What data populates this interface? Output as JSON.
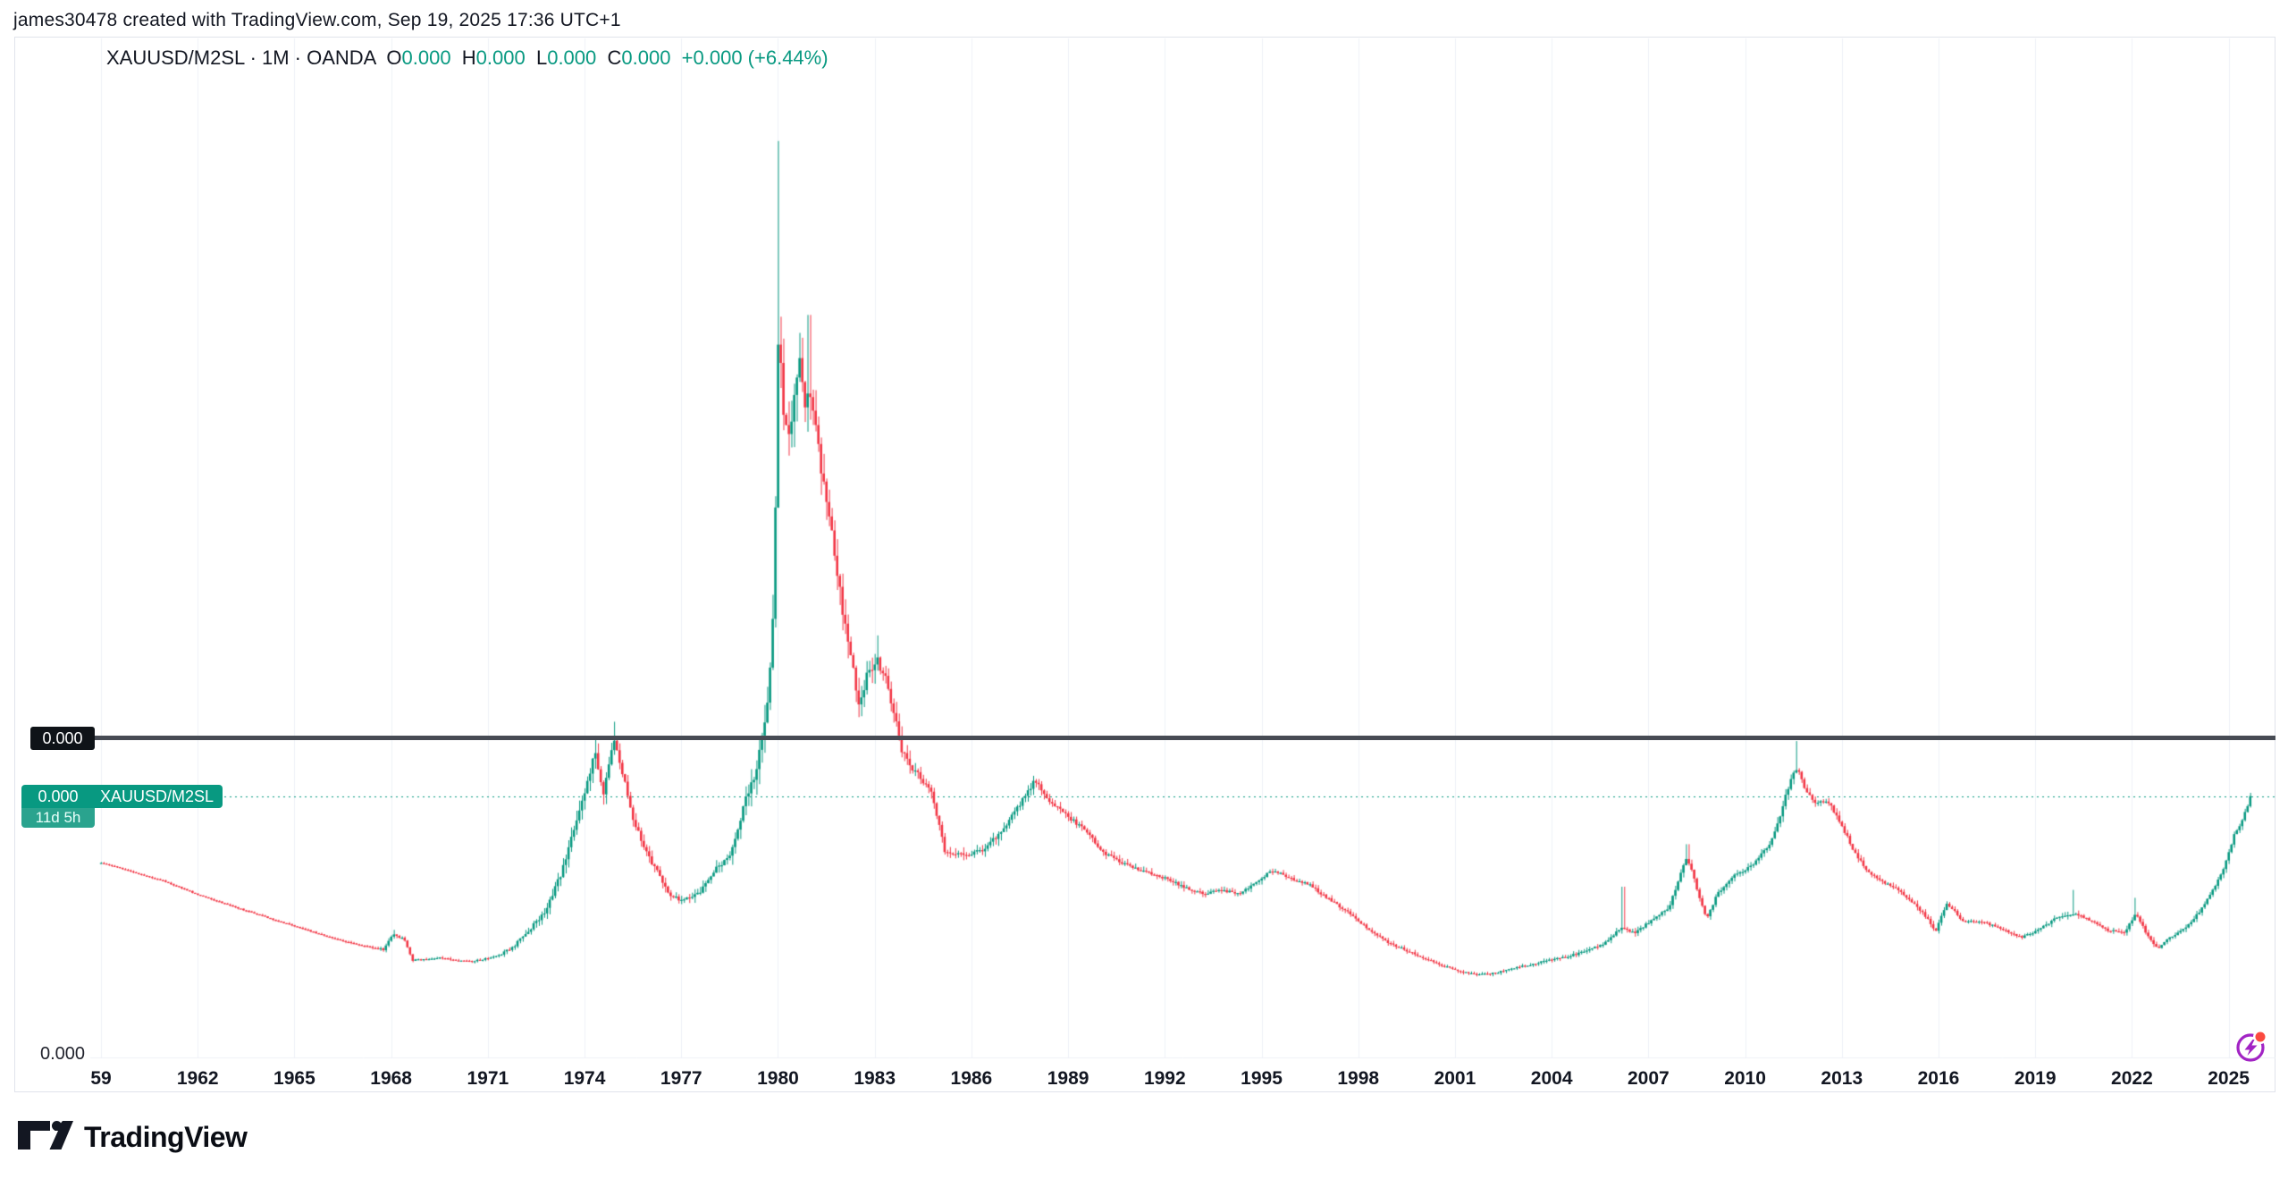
{
  "attribution": {
    "text": "james30478 created with TradingView.com, Sep 19, 2025 17:36 UTC+1"
  },
  "legend": {
    "symbol_line": "XAUUSD/M2SL · 1M · OANDA",
    "ohlc": [
      {
        "label": "O",
        "value": "0.000"
      },
      {
        "label": "H",
        "value": "0.000"
      },
      {
        "label": "L",
        "value": "0.000"
      },
      {
        "label": "C",
        "value": "0.000"
      }
    ],
    "change": "+0.000 (+6.44%)"
  },
  "price_scale": {
    "line_label": "0.000",
    "bottom_tick": "0.000",
    "current_price_label": "0.000",
    "countdown": "11d 5h",
    "series_tag": "XAUUSD/M2SL"
  },
  "time_axis": {
    "labels": [
      {
        "text": "59",
        "year": 1959
      },
      {
        "text": "1962",
        "year": 1962
      },
      {
        "text": "1965",
        "year": 1965
      },
      {
        "text": "1968",
        "year": 1968
      },
      {
        "text": "1971",
        "year": 1971
      },
      {
        "text": "1974",
        "year": 1974
      },
      {
        "text": "1977",
        "year": 1977
      },
      {
        "text": "1980",
        "year": 1980
      },
      {
        "text": "1983",
        "year": 1983
      },
      {
        "text": "1986",
        "year": 1986
      },
      {
        "text": "1989",
        "year": 1989
      },
      {
        "text": "1992",
        "year": 1992
      },
      {
        "text": "1995",
        "year": 1995
      },
      {
        "text": "1998",
        "year": 1998
      },
      {
        "text": "2001",
        "year": 2001
      },
      {
        "text": "2004",
        "year": 2004
      },
      {
        "text": "2007",
        "year": 2007
      },
      {
        "text": "2010",
        "year": 2010
      },
      {
        "text": "2013",
        "year": 2013
      },
      {
        "text": "2016",
        "year": 2016
      },
      {
        "text": "2019",
        "year": 2019
      },
      {
        "text": "2022",
        "year": 2022
      },
      {
        "text": "2025",
        "year": 2025
      }
    ]
  },
  "footer": {
    "logo_text": "TradingView"
  },
  "colors": {
    "up": "#089981",
    "down": "#f23645",
    "grid": "#eef1f7",
    "black_line": "#474b54",
    "dotted_price_line": "#089981",
    "text": "#131722",
    "badge_black_bg": "#0f1318",
    "badge_green_bg": "#089981",
    "ai_purple": "#a224c4",
    "ai_red_dot": "#fb4a3f"
  },
  "chart_data": {
    "type": "candlestick",
    "title": "XAUUSD/M2SL monthly candles (gold price / M2 money supply ratio)",
    "x_range": [
      1959.0,
      2025.75
    ],
    "bar_interval": "1M",
    "y_axis_tick_labels": [
      "0.000",
      "0.000"
    ],
    "y_axis_note": "price scale rounds every label to 0.000; values below are relative units where the drawn black horizontal line = 1.0 and the bottom gridline = 0.0",
    "levels": {
      "black_line": 1.0,
      "current_price": 0.822
    },
    "anchors": [
      [
        1959.0,
        0.615
      ],
      [
        1960.0,
        0.585
      ],
      [
        1961.0,
        0.555
      ],
      [
        1962.0,
        0.515
      ],
      [
        1963.0,
        0.48
      ],
      [
        1964.0,
        0.447
      ],
      [
        1965.0,
        0.415
      ],
      [
        1966.0,
        0.383
      ],
      [
        1967.0,
        0.355
      ],
      [
        1967.8,
        0.34
      ],
      [
        1968.1,
        0.388
      ],
      [
        1968.45,
        0.372
      ],
      [
        1968.7,
        0.306
      ],
      [
        1969.5,
        0.314
      ],
      [
        1970.5,
        0.302
      ],
      [
        1971.3,
        0.318
      ],
      [
        1971.8,
        0.346
      ],
      [
        1972.3,
        0.4
      ],
      [
        1972.8,
        0.46
      ],
      [
        1973.3,
        0.575
      ],
      [
        1973.7,
        0.71
      ],
      [
        1974.1,
        0.86
      ],
      [
        1974.35,
        0.965
      ],
      [
        1974.6,
        0.825
      ],
      [
        1974.95,
        0.995
      ],
      [
        1975.2,
        0.905
      ],
      [
        1975.6,
        0.73
      ],
      [
        1976.1,
        0.62
      ],
      [
        1976.6,
        0.525
      ],
      [
        1977.0,
        0.49
      ],
      [
        1977.6,
        0.52
      ],
      [
        1978.1,
        0.59
      ],
      [
        1978.6,
        0.655
      ],
      [
        1979.0,
        0.8
      ],
      [
        1979.4,
        0.92
      ],
      [
        1979.7,
        1.1
      ],
      [
        1979.85,
        1.3
      ],
      [
        1979.96,
        1.72
      ],
      [
        1980.05,
        2.31
      ],
      [
        1980.2,
        2.06
      ],
      [
        1980.4,
        1.98
      ],
      [
        1980.55,
        2.12
      ],
      [
        1980.7,
        2.2
      ],
      [
        1980.85,
        2.05
      ],
      [
        1981.0,
        2.14
      ],
      [
        1981.3,
        1.9
      ],
      [
        1981.6,
        1.72
      ],
      [
        1981.9,
        1.5
      ],
      [
        1982.2,
        1.32
      ],
      [
        1982.55,
        1.12
      ],
      [
        1982.8,
        1.2
      ],
      [
        1983.1,
        1.26
      ],
      [
        1983.35,
        1.2
      ],
      [
        1983.6,
        1.1
      ],
      [
        1983.9,
        0.96
      ],
      [
        1984.3,
        0.9
      ],
      [
        1984.8,
        0.84
      ],
      [
        1985.2,
        0.655
      ],
      [
        1985.7,
        0.638
      ],
      [
        1986.3,
        0.65
      ],
      [
        1986.9,
        0.7
      ],
      [
        1987.5,
        0.79
      ],
      [
        1988.0,
        0.875
      ],
      [
        1988.4,
        0.815
      ],
      [
        1988.9,
        0.77
      ],
      [
        1989.5,
        0.72
      ],
      [
        1990.2,
        0.64
      ],
      [
        1991.0,
        0.6
      ],
      [
        1992.0,
        0.565
      ],
      [
        1992.6,
        0.54
      ],
      [
        1993.2,
        0.515
      ],
      [
        1993.8,
        0.528
      ],
      [
        1994.4,
        0.515
      ],
      [
        1995.0,
        0.565
      ],
      [
        1995.4,
        0.59
      ],
      [
        1995.9,
        0.565
      ],
      [
        1996.5,
        0.545
      ],
      [
        1997.1,
        0.5
      ],
      [
        1997.7,
        0.46
      ],
      [
        1998.3,
        0.41
      ],
      [
        1999.0,
        0.36
      ],
      [
        1999.7,
        0.33
      ],
      [
        2000.4,
        0.3
      ],
      [
        2001.1,
        0.272
      ],
      [
        2001.7,
        0.26
      ],
      [
        2002.3,
        0.266
      ],
      [
        2003.0,
        0.285
      ],
      [
        2003.7,
        0.3
      ],
      [
        2004.4,
        0.315
      ],
      [
        2005.1,
        0.335
      ],
      [
        2005.7,
        0.36
      ],
      [
        2006.2,
        0.41
      ],
      [
        2006.6,
        0.39
      ],
      [
        2007.1,
        0.43
      ],
      [
        2007.7,
        0.475
      ],
      [
        2008.1,
        0.6
      ],
      [
        2008.25,
        0.63
      ],
      [
        2008.6,
        0.51
      ],
      [
        2008.85,
        0.435
      ],
      [
        2009.2,
        0.52
      ],
      [
        2009.7,
        0.575
      ],
      [
        2010.2,
        0.6
      ],
      [
        2010.7,
        0.655
      ],
      [
        2011.1,
        0.75
      ],
      [
        2011.45,
        0.88
      ],
      [
        2011.65,
        0.915
      ],
      [
        2011.9,
        0.845
      ],
      [
        2012.2,
        0.8
      ],
      [
        2012.6,
        0.81
      ],
      [
        2013.0,
        0.74
      ],
      [
        2013.4,
        0.65
      ],
      [
        2013.8,
        0.59
      ],
      [
        2014.3,
        0.555
      ],
      [
        2014.9,
        0.52
      ],
      [
        2015.5,
        0.462
      ],
      [
        2015.95,
        0.4
      ],
      [
        2016.3,
        0.485
      ],
      [
        2016.8,
        0.43
      ],
      [
        2017.4,
        0.428
      ],
      [
        2018.0,
        0.405
      ],
      [
        2018.6,
        0.377
      ],
      [
        2019.2,
        0.405
      ],
      [
        2019.7,
        0.44
      ],
      [
        2020.2,
        0.455
      ],
      [
        2020.8,
        0.43
      ],
      [
        2021.3,
        0.4
      ],
      [
        2021.8,
        0.392
      ],
      [
        2022.15,
        0.45
      ],
      [
        2022.5,
        0.39
      ],
      [
        2022.85,
        0.34
      ],
      [
        2023.2,
        0.378
      ],
      [
        2023.7,
        0.41
      ],
      [
        2024.1,
        0.455
      ],
      [
        2024.5,
        0.52
      ],
      [
        2024.9,
        0.6
      ],
      [
        2025.2,
        0.7
      ],
      [
        2025.45,
        0.745
      ],
      [
        2025.72,
        0.823
      ]
    ],
    "volatility": [
      [
        1959,
        0.004
      ],
      [
        1966,
        0.005
      ],
      [
        1967.5,
        0.006
      ],
      [
        1968,
        0.011
      ],
      [
        1969,
        0.006
      ],
      [
        1971,
        0.007
      ],
      [
        1972,
        0.014
      ],
      [
        1973,
        0.028
      ],
      [
        1974,
        0.045
      ],
      [
        1975,
        0.038
      ],
      [
        1976,
        0.026
      ],
      [
        1977,
        0.022
      ],
      [
        1978,
        0.027
      ],
      [
        1979,
        0.05
      ],
      [
        1979.8,
        0.085
      ],
      [
        1980.1,
        0.13
      ],
      [
        1980.6,
        0.115
      ],
      [
        1981,
        0.1
      ],
      [
        1982,
        0.075
      ],
      [
        1983,
        0.055
      ],
      [
        1984,
        0.04
      ],
      [
        1985,
        0.027
      ],
      [
        1986,
        0.023
      ],
      [
        1987,
        0.028
      ],
      [
        1988,
        0.025
      ],
      [
        1989,
        0.02
      ],
      [
        1990,
        0.018
      ],
      [
        1992,
        0.016
      ],
      [
        1994,
        0.014
      ],
      [
        1995,
        0.016
      ],
      [
        1997,
        0.013
      ],
      [
        1999,
        0.011
      ],
      [
        2001,
        0.009
      ],
      [
        2003,
        0.009
      ],
      [
        2005,
        0.012
      ],
      [
        2006,
        0.015
      ],
      [
        2007,
        0.014
      ],
      [
        2008,
        0.021
      ],
      [
        2009,
        0.016
      ],
      [
        2010,
        0.016
      ],
      [
        2011,
        0.025
      ],
      [
        2012,
        0.018
      ],
      [
        2013,
        0.021
      ],
      [
        2014,
        0.013
      ],
      [
        2016,
        0.015
      ],
      [
        2017,
        0.01
      ],
      [
        2018,
        0.01
      ],
      [
        2019,
        0.012
      ],
      [
        2020,
        0.015
      ],
      [
        2021,
        0.011
      ],
      [
        2022,
        0.016
      ],
      [
        2023,
        0.011
      ],
      [
        2024,
        0.014
      ],
      [
        2025,
        0.016
      ]
    ],
    "wick_spikes": [
      [
        1968.1,
        0.402
      ],
      [
        1974.35,
        1.012
      ],
      [
        1974.95,
        1.058
      ],
      [
        1980.05,
        2.888
      ],
      [
        1981.0,
        2.34
      ],
      [
        1983.15,
        1.33
      ],
      [
        2006.25,
        0.538
      ],
      [
        2008.25,
        0.672
      ],
      [
        2011.65,
        0.997
      ],
      [
        2020.2,
        0.528
      ],
      [
        2022.15,
        0.503
      ]
    ]
  }
}
